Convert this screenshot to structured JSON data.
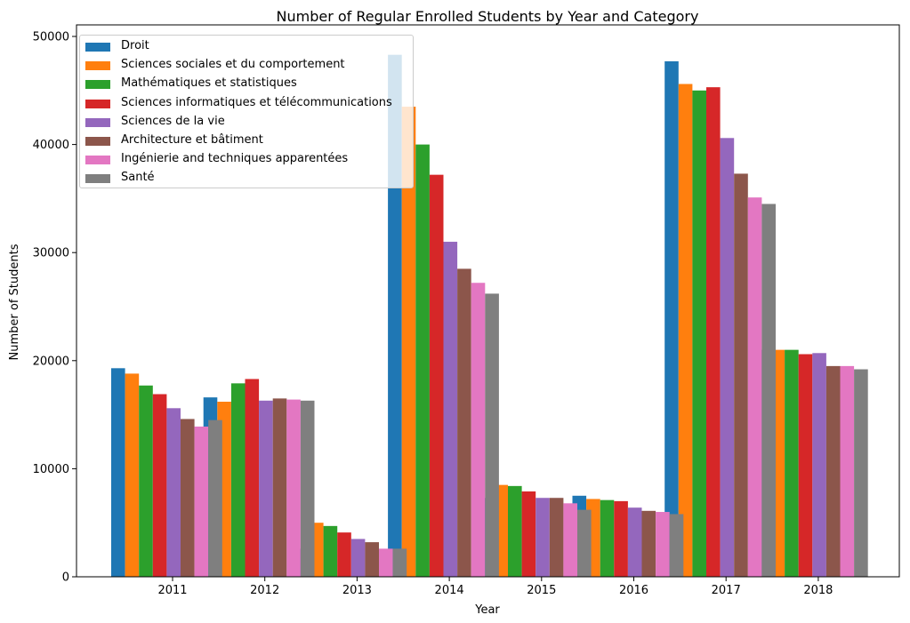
{
  "chart_data": {
    "type": "bar",
    "title": "Number of Regular Enrolled Students by Year and Category",
    "xlabel": "Year",
    "ylabel": "Number of Students",
    "ylim": [
      0,
      50000
    ],
    "yticks": [
      0,
      10000,
      20000,
      30000,
      40000,
      50000
    ],
    "yticklabels": [
      "0",
      "10000",
      "20000",
      "30000",
      "40000",
      "50000"
    ],
    "categories": [
      "2011",
      "2012",
      "2013",
      "2014",
      "2015",
      "2016",
      "2017",
      "2018"
    ],
    "grid": false,
    "legend_position": "top-left",
    "series": [
      {
        "name": "Droit",
        "color": "#1f77b4",
        "values": [
          19300,
          16600,
          2600,
          48300,
          7300,
          7500,
          47700,
          21000
        ]
      },
      {
        "name": "Sciences sociales et du comportement",
        "color": "#ff7f0e",
        "values": [
          18800,
          16200,
          5000,
          43500,
          8500,
          7200,
          45600,
          21000
        ]
      },
      {
        "name": "Mathématiques et statistiques",
        "color": "#2ca02c",
        "values": [
          17700,
          17900,
          4700,
          40000,
          8400,
          7100,
          45000,
          21000
        ]
      },
      {
        "name": "Sciences informatiques et télécommunications",
        "color": "#d62728",
        "values": [
          16900,
          18300,
          4100,
          37200,
          7900,
          7000,
          45300,
          20600
        ]
      },
      {
        "name": "Sciences de la vie",
        "color": "#9467bd",
        "values": [
          15600,
          16300,
          3500,
          31000,
          7300,
          6400,
          40600,
          20700
        ]
      },
      {
        "name": "Architecture et bâtiment",
        "color": "#8c564b",
        "values": [
          14600,
          16500,
          3200,
          28500,
          7300,
          6100,
          37300,
          19500
        ]
      },
      {
        "name": "Ingénierie and techniques apparentées",
        "color": "#e377c2",
        "values": [
          13900,
          16400,
          2600,
          27200,
          6800,
          6000,
          35100,
          19500
        ]
      },
      {
        "name": "Santé",
        "color": "#7f7f7f",
        "values": [
          14500,
          16300,
          2600,
          26200,
          6200,
          5800,
          34500,
          19200
        ]
      }
    ]
  }
}
